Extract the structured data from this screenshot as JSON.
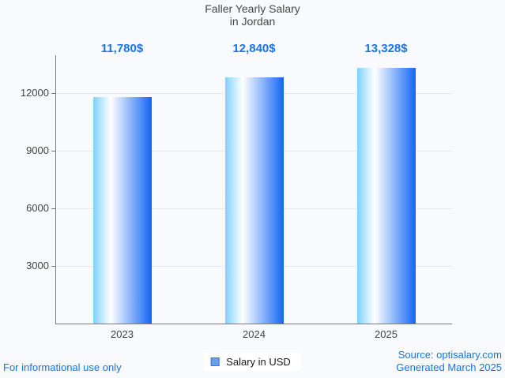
{
  "title": {
    "line1": "Faller Yearly Salary",
    "line2": "in Jordan"
  },
  "chart_data": {
    "type": "bar",
    "title": "Faller Yearly Salary in Jordan",
    "categories": [
      "2023",
      "2024",
      "2025"
    ],
    "values": [
      11780,
      12840,
      13328
    ],
    "value_labels": [
      "11,780$",
      "12,840$",
      "13,328$"
    ],
    "series_name": "Salary in USD",
    "xlabel": "",
    "ylabel": "",
    "ylim": [
      0,
      13970
    ],
    "yticks": [
      3000,
      6000,
      9000,
      12000
    ],
    "grid": true,
    "legend_position": "bottom",
    "annotation_color": "#1a73e8",
    "axis_color": "#7a7a7a",
    "gridline_color": "#e5e8ec",
    "background_color": "#f8fafd",
    "bar_gradient": [
      "#7ed3fb",
      "#ffffff",
      "#1266f5"
    ]
  },
  "legend": {
    "label": "Salary in USD",
    "swatch_fill": "#6d9eeb",
    "swatch_border": "#3c78d8"
  },
  "footer": {
    "left": "For informational use only",
    "source": "Source: optisalary.com",
    "generated": "Generated March 2025",
    "link_color": "#1a73e8"
  }
}
